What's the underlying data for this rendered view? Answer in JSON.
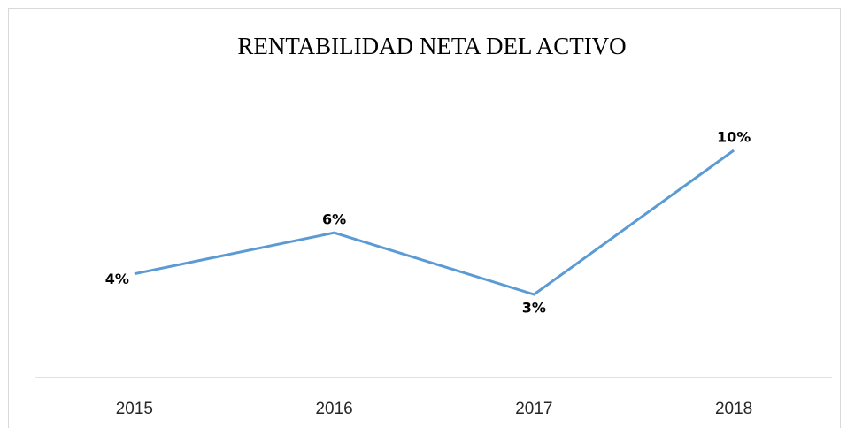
{
  "chart_data": {
    "type": "line",
    "title": "RENTABILIDAD NETA DEL ACTIVO",
    "categories": [
      "2015",
      "2016",
      "2017",
      "2018"
    ],
    "series": [
      {
        "name": "RENTABILIDAD NETA DEL ACTIVO",
        "color": "#5b9bd5",
        "values": [
          4,
          6,
          3,
          10
        ],
        "value_labels": [
          "4%",
          "6%",
          "3%",
          "10%"
        ]
      }
    ]
  }
}
